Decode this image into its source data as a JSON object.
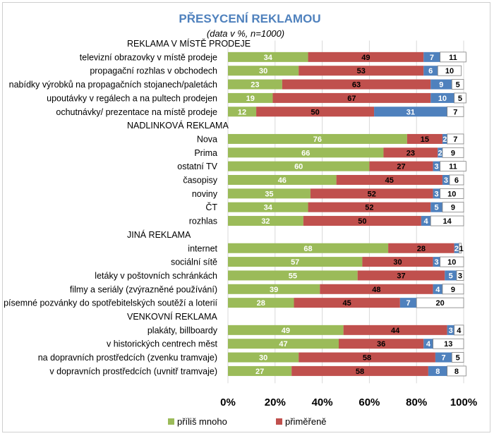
{
  "chart_data": {
    "type": "bar",
    "orientation": "horizontal",
    "stacked": true,
    "percent_stacked": true,
    "title": "PŘESYCENÍ REKLAMOU",
    "subtitle": "(data v %, n=1000)",
    "xlim": [
      0,
      100
    ],
    "xticks": [
      "0%",
      "20%",
      "40%",
      "60%",
      "80%",
      "100%"
    ],
    "colors": [
      "#9bbb59",
      "#c0504d",
      "#4f81bd",
      "#ffffff"
    ],
    "legend_position": "bottom",
    "legend": [
      "příliš mnoho",
      "přiměřeně"
    ],
    "rows": [
      {
        "label": "REKLAMA V MÍSTĚ PRODEJE",
        "header": true
      },
      {
        "label": "televizní obrazovky v místě prodeje",
        "values": [
          34,
          49,
          7,
          11
        ]
      },
      {
        "label": "propagační rozhlas v obchodech",
        "values": [
          30,
          53,
          6,
          10
        ]
      },
      {
        "label": "nabídky výrobků na propagačních stojanech/paletách",
        "values": [
          23,
          63,
          9,
          5
        ]
      },
      {
        "label": "upoutávky v regálech a na pultech prodejen",
        "values": [
          19,
          67,
          10,
          5
        ]
      },
      {
        "label": "ochutnávky/ prezentace na místě prodeje",
        "values": [
          12,
          50,
          31,
          7
        ]
      },
      {
        "label": "NADLINKOVÁ REKLAMA",
        "header": true
      },
      {
        "label": "Nova",
        "values": [
          76,
          15,
          2,
          7
        ]
      },
      {
        "label": "Prima",
        "values": [
          66,
          23,
          2,
          9
        ]
      },
      {
        "label": "ostatní TV",
        "values": [
          60,
          27,
          3,
          11
        ]
      },
      {
        "label": "časopisy",
        "values": [
          46,
          45,
          3,
          6
        ]
      },
      {
        "label": "noviny",
        "values": [
          35,
          52,
          3,
          10
        ]
      },
      {
        "label": "ČT",
        "values": [
          34,
          52,
          5,
          9
        ]
      },
      {
        "label": "rozhlas",
        "values": [
          32,
          50,
          4,
          14
        ]
      },
      {
        "label": "JINÁ REKLAMA",
        "header": true
      },
      {
        "label": "internet",
        "values": [
          68,
          28,
          2,
          1
        ]
      },
      {
        "label": "sociální sítě",
        "values": [
          57,
          30,
          3,
          10
        ]
      },
      {
        "label": "letáky v poštovních schránkách",
        "values": [
          55,
          37,
          5,
          3
        ]
      },
      {
        "label": "filmy a seriály (zvýrazněné používání)",
        "values": [
          39,
          48,
          4,
          9
        ]
      },
      {
        "label": "písemné pozvánky do spotřebitelských soutěží a loterií",
        "values": [
          28,
          45,
          7,
          20
        ]
      },
      {
        "label": "VENKOVNÍ REKLAMA",
        "header": true
      },
      {
        "label": "plakáty, billboardy",
        "values": [
          49,
          44,
          3,
          4
        ]
      },
      {
        "label": "v historických centrech měst",
        "values": [
          47,
          36,
          4,
          13
        ]
      },
      {
        "label": "na dopravních prostředcích (zvenku tramvaje)",
        "values": [
          30,
          58,
          7,
          5
        ]
      },
      {
        "label": "v dopravních prostředcích (uvnitř tramvaje)",
        "values": [
          27,
          58,
          8,
          8
        ]
      }
    ]
  }
}
